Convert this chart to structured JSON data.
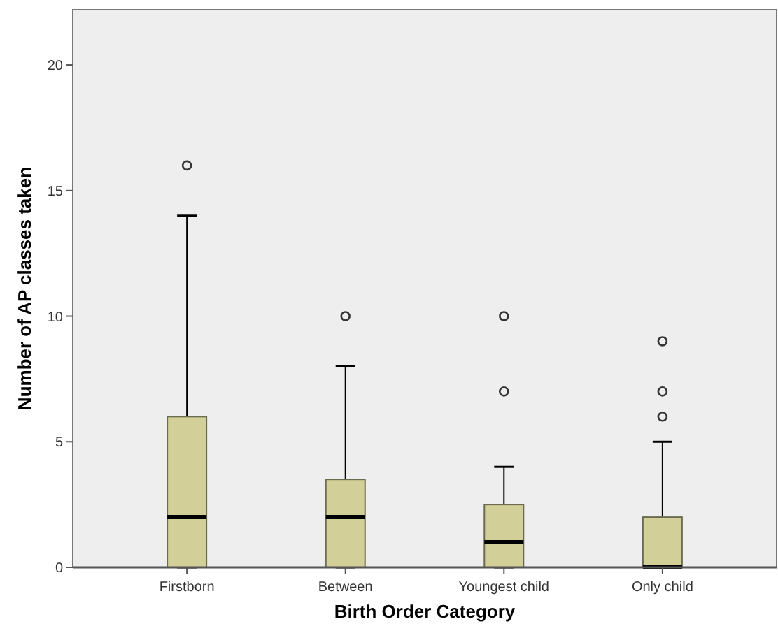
{
  "chart_data": {
    "type": "box",
    "xlabel": "Birth Order Category",
    "ylabel": "Number of AP classes taken",
    "categories": [
      "Firstborn",
      "Between",
      "Youngest child",
      "Only child"
    ],
    "color": "#d3cf98",
    "ylim": [
      0,
      22.2
    ],
    "yticks": [
      0,
      5,
      10,
      15,
      20
    ],
    "grid": false,
    "boxes": [
      {
        "low": 0,
        "q1": 0,
        "median": 2,
        "q3": 6,
        "high": 14,
        "outliers": [
          16
        ]
      },
      {
        "low": 0,
        "q1": 0,
        "median": 2,
        "q3": 3.5,
        "high": 8,
        "outliers": [
          10
        ]
      },
      {
        "low": 0,
        "q1": 0,
        "median": 1,
        "q3": 2.5,
        "high": 4,
        "outliers": [
          7,
          10
        ]
      },
      {
        "low": 0,
        "q1": 0,
        "median": 0,
        "q3": 2,
        "high": 5,
        "outliers": [
          6,
          7,
          9
        ]
      }
    ]
  }
}
